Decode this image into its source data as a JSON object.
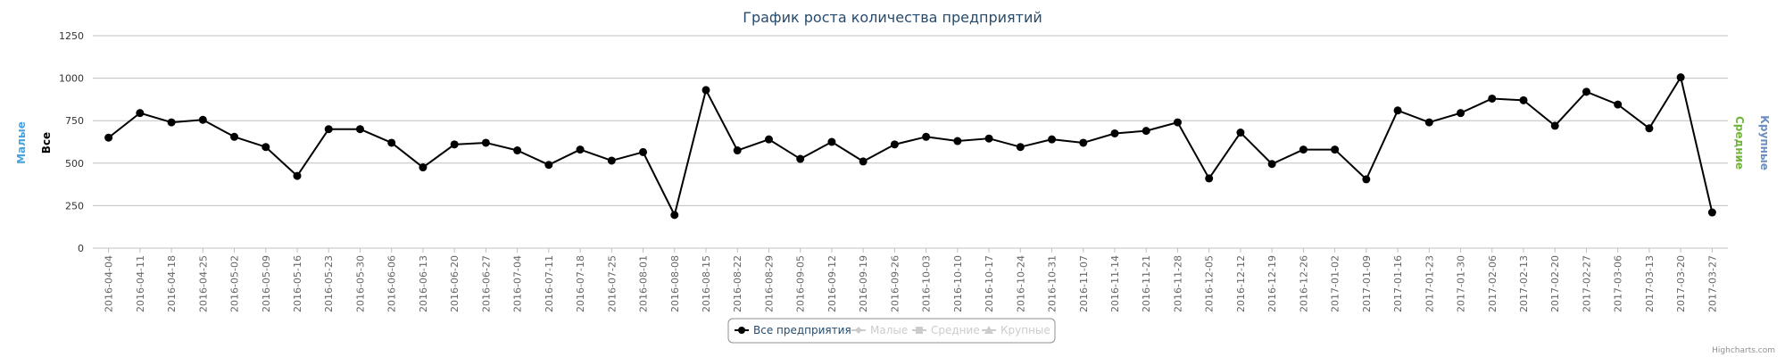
{
  "colors": {
    "main_series": "#000000",
    "gridline": "#c0c0c0",
    "axis_all": "#000000",
    "axis_small": "#4aa3df",
    "axis_medium": "#72b43b",
    "axis_large": "#6c8ebf",
    "legend_hidden": "#cccccc",
    "title": "#274b6d"
  },
  "legend": {
    "items": [
      {
        "label": "Все предприятия",
        "visible": true,
        "symbol": "circle"
      },
      {
        "label": "Малые",
        "visible": false,
        "symbol": "diamond"
      },
      {
        "label": "Средние",
        "visible": false,
        "symbol": "square"
      },
      {
        "label": "Крупные",
        "visible": false,
        "symbol": "triangle"
      }
    ]
  },
  "credits": "Highcharts.com",
  "chart_data": {
    "type": "line",
    "title": "График роста количества предприятий",
    "ylim": [
      0,
      1250
    ],
    "yticks": [
      0,
      250,
      500,
      750,
      1000,
      1250
    ],
    "grid": true,
    "legend_position": "bottom-center",
    "axis_titles": {
      "left": [
        "Малые",
        "Все"
      ],
      "right": [
        "Средние",
        "Крупные"
      ]
    },
    "x": [
      "2016-04-04",
      "2016-04-11",
      "2016-04-18",
      "2016-04-25",
      "2016-05-02",
      "2016-05-09",
      "2016-05-16",
      "2016-05-23",
      "2016-05-30",
      "2016-06-06",
      "2016-06-13",
      "2016-06-20",
      "2016-06-27",
      "2016-07-04",
      "2016-07-11",
      "2016-07-18",
      "2016-07-25",
      "2016-08-01",
      "2016-08-08",
      "2016-08-15",
      "2016-08-22",
      "2016-08-29",
      "2016-09-05",
      "2016-09-12",
      "2016-09-19",
      "2016-09-26",
      "2016-10-03",
      "2016-10-10",
      "2016-10-17",
      "2016-10-24",
      "2016-10-31",
      "2016-11-07",
      "2016-11-14",
      "2016-11-21",
      "2016-11-28",
      "2016-12-05",
      "2016-12-12",
      "2016-12-19",
      "2016-12-26",
      "2017-01-02",
      "2017-01-09",
      "2017-01-16",
      "2017-01-23",
      "2017-01-30",
      "2017-02-06",
      "2017-02-13",
      "2017-02-20",
      "2017-02-27",
      "2017-03-06",
      "2017-03-13",
      "2017-03-20",
      "2017-03-27"
    ],
    "series": [
      {
        "name": "Все предприятия",
        "values": [
          650,
          795,
          740,
          755,
          655,
          595,
          425,
          700,
          700,
          620,
          475,
          610,
          620,
          575,
          490,
          580,
          515,
          565,
          195,
          930,
          575,
          640,
          525,
          625,
          510,
          610,
          655,
          630,
          645,
          595,
          640,
          620,
          675,
          690,
          740,
          410,
          680,
          495,
          580,
          580,
          405,
          810,
          740,
          795,
          880,
          870,
          720,
          920,
          845,
          705,
          1005,
          210
        ]
      }
    ]
  }
}
